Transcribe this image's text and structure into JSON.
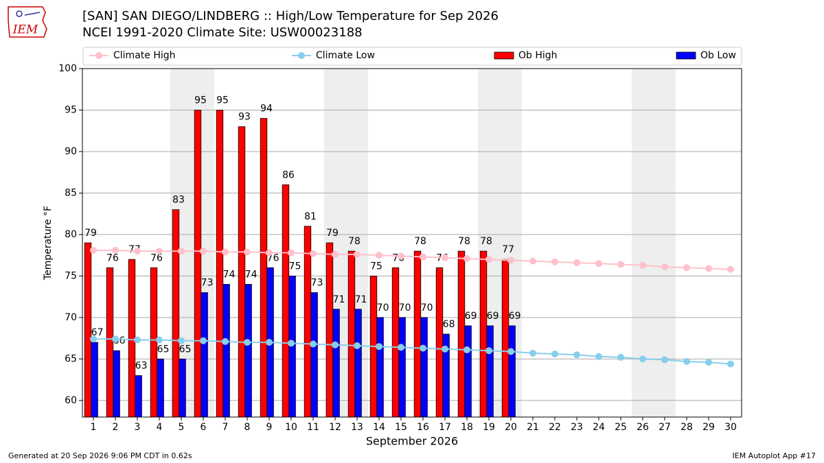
{
  "logo": "IEM",
  "footer": {
    "left": "Generated at 20 Sep 2026 9:06 PM CDT in 0.62s",
    "right": "IEM Autoplot App #17"
  },
  "chart_data": {
    "type": "bar",
    "title": "[SAN] SAN DIEGO/LINDBERG :: High/Low Temperature for Sep 2026",
    "subtitle": "NCEI 1991-2020 Climate Site: USW00023188",
    "x_label": "September 2026",
    "y_label": "Temperature °F",
    "x": [
      1,
      2,
      3,
      4,
      5,
      6,
      7,
      8,
      9,
      10,
      11,
      12,
      13,
      14,
      15,
      16,
      17,
      18,
      19,
      20,
      21,
      22,
      23,
      24,
      25,
      26,
      27,
      28,
      29,
      30
    ],
    "xlim": [
      0.5,
      30.5
    ],
    "xticks": [
      1,
      2,
      3,
      4,
      5,
      6,
      7,
      8,
      9,
      10,
      11,
      12,
      13,
      14,
      15,
      16,
      17,
      18,
      19,
      20,
      21,
      22,
      23,
      24,
      25,
      26,
      27,
      28,
      29,
      30
    ],
    "ylim": [
      58,
      100
    ],
    "yticks": [
      60,
      65,
      70,
      75,
      80,
      85,
      90,
      95,
      100
    ],
    "grid": true,
    "shaded_days": [
      5,
      6,
      12,
      13,
      19,
      20,
      26,
      27
    ],
    "series": [
      {
        "name": "Climate High",
        "kind": "line",
        "color": "#ffc0cb",
        "values": [
          78.1,
          78.1,
          78.0,
          78.0,
          78.0,
          78.0,
          77.9,
          77.9,
          77.8,
          77.8,
          77.7,
          77.6,
          77.6,
          77.5,
          77.4,
          77.3,
          77.2,
          77.1,
          77.0,
          76.9,
          76.8,
          76.7,
          76.6,
          76.5,
          76.4,
          76.3,
          76.1,
          76.0,
          75.9,
          75.8
        ]
      },
      {
        "name": "Climate Low",
        "kind": "line",
        "color": "#87ceeb",
        "values": [
          67.4,
          67.4,
          67.3,
          67.3,
          67.2,
          67.2,
          67.1,
          67.0,
          67.0,
          66.9,
          66.8,
          66.7,
          66.6,
          66.5,
          66.4,
          66.3,
          66.2,
          66.1,
          66.0,
          65.9,
          65.7,
          65.6,
          65.5,
          65.3,
          65.2,
          65.0,
          64.9,
          64.7,
          64.6,
          64.4
        ]
      },
      {
        "name": "Ob High",
        "kind": "bar",
        "color": "#ff0000",
        "values": [
          79,
          76,
          77,
          76,
          83,
          95,
          95,
          93,
          94,
          86,
          81,
          79,
          78,
          75,
          76,
          78,
          76,
          78,
          78,
          77,
          null,
          null,
          null,
          null,
          null,
          null,
          null,
          null,
          null,
          null
        ]
      },
      {
        "name": "Ob Low",
        "kind": "bar",
        "color": "#0000ff",
        "values": [
          67,
          66,
          63,
          65,
          65,
          73,
          74,
          74,
          76,
          75,
          73,
          71,
          71,
          70,
          70,
          70,
          68,
          69,
          69,
          69,
          null,
          null,
          null,
          null,
          null,
          null,
          null,
          null,
          null,
          null
        ]
      }
    ]
  }
}
